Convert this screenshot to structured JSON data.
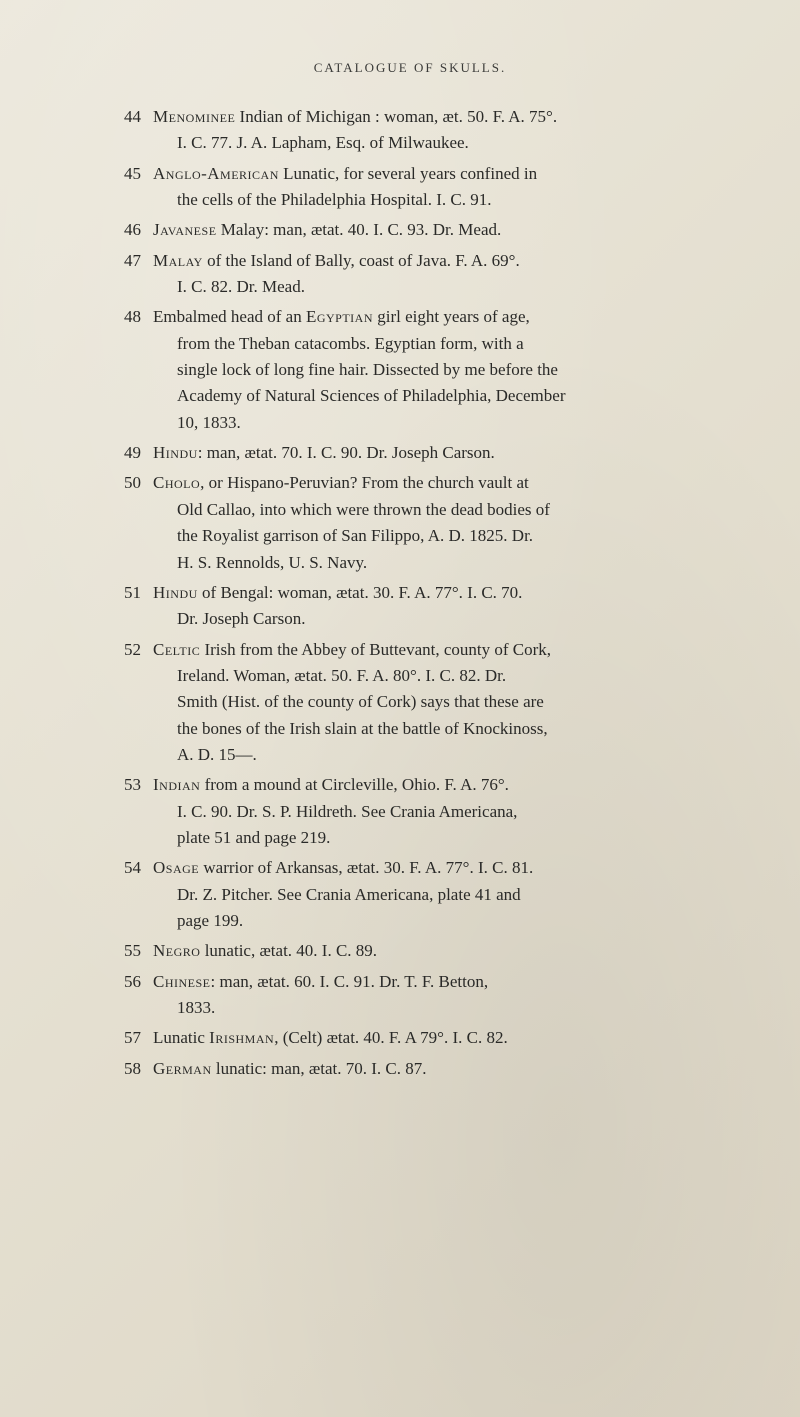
{
  "header": "CATALOGUE OF SKULLS.",
  "entries": [
    {
      "num": "44",
      "lines": [
        "<span class='sc'>Menominee</span> Indian of Michigan : woman, æt. 50. F. A. 75°.",
        "I. C. 77. J. A. Lapham, Esq. of Milwaukee."
      ]
    },
    {
      "num": "45",
      "lines": [
        "<span class='sc'>Anglo-American</span> Lunatic, for several years confined in",
        "the cells of the Philadelphia Hospital. I. C. 91."
      ]
    },
    {
      "num": "46",
      "lines": [
        "<span class='sc'>Javanese</span> Malay: man, ætat. 40. I. C. 93. Dr. Mead."
      ]
    },
    {
      "num": "47",
      "lines": [
        "<span class='sc'>Malay</span> of the Island of Bally, coast of Java. F. A. 69°.",
        "I. C. 82. Dr. Mead."
      ]
    },
    {
      "num": "48",
      "lines": [
        "Embalmed head of an <span class='sc'>Egyptian</span> girl eight years of age,",
        "from the Theban catacombs. Egyptian form, with a",
        "single lock of long fine hair. Dissected by me before the",
        "Academy of Natural Sciences of Philadelphia, December",
        "10, 1833."
      ]
    },
    {
      "num": "49",
      "lines": [
        "<span class='sc'>Hindu</span>: man, ætat. 70. I. C. 90. Dr. Joseph Carson."
      ]
    },
    {
      "num": "50",
      "lines": [
        "<span class='sc'>Cholo</span>, or Hispano-Peruvian? From the church vault at",
        "Old Callao, into which were thrown the dead bodies of",
        "the Royalist garrison of San Filippo, A. D. 1825. Dr.",
        "H. S. Rennolds, U. S. Navy."
      ]
    },
    {
      "num": "51",
      "lines": [
        "<span class='sc'>Hindu</span> of Bengal: woman, ætat. 30. F. A. 77°. I. C. 70.",
        "Dr. Joseph Carson."
      ]
    },
    {
      "num": "52",
      "lines": [
        "<span class='sc'>Celtic</span> Irish from the Abbey of Buttevant, county of Cork,",
        "Ireland. Woman, ætat. 50. F. A. 80°. I. C. 82. Dr.",
        "Smith (Hist. of the county of Cork) says that these are",
        "the bones of the Irish slain at the battle of Knockinoss,",
        "A. D. 15—."
      ]
    },
    {
      "num": "53",
      "lines": [
        "<span class='sc'>Indian</span> from a mound at Circleville, Ohio. F. A. 76°.",
        "I. C. 90. Dr. S. P. Hildreth. See Crania Americana,",
        "plate 51 and page 219."
      ]
    },
    {
      "num": "54",
      "lines": [
        "<span class='sc'>Osage</span> warrior of Arkansas, ætat. 30. F. A. 77°. I. C. 81.",
        "Dr. Z. Pitcher. See Crania Americana, plate 41 and",
        "page 199."
      ]
    },
    {
      "num": "55",
      "lines": [
        "<span class='sc'>Negro</span> lunatic, ætat. 40. I. C. 89."
      ]
    },
    {
      "num": "56",
      "lines": [
        "<span class='sc'>Chinese</span>: man, ætat. 60. I. C. 91. Dr. T. F. Betton,",
        "1833."
      ]
    },
    {
      "num": "57",
      "lines": [
        "Lunatic <span class='sc'>Irishman</span>, (Celt) ætat. 40. F. A 79°. I. C. 82."
      ]
    },
    {
      "num": "58",
      "lines": [
        "<span class='sc'>German</span> lunatic: man, ætat. 70. I. C. 87."
      ]
    }
  ]
}
